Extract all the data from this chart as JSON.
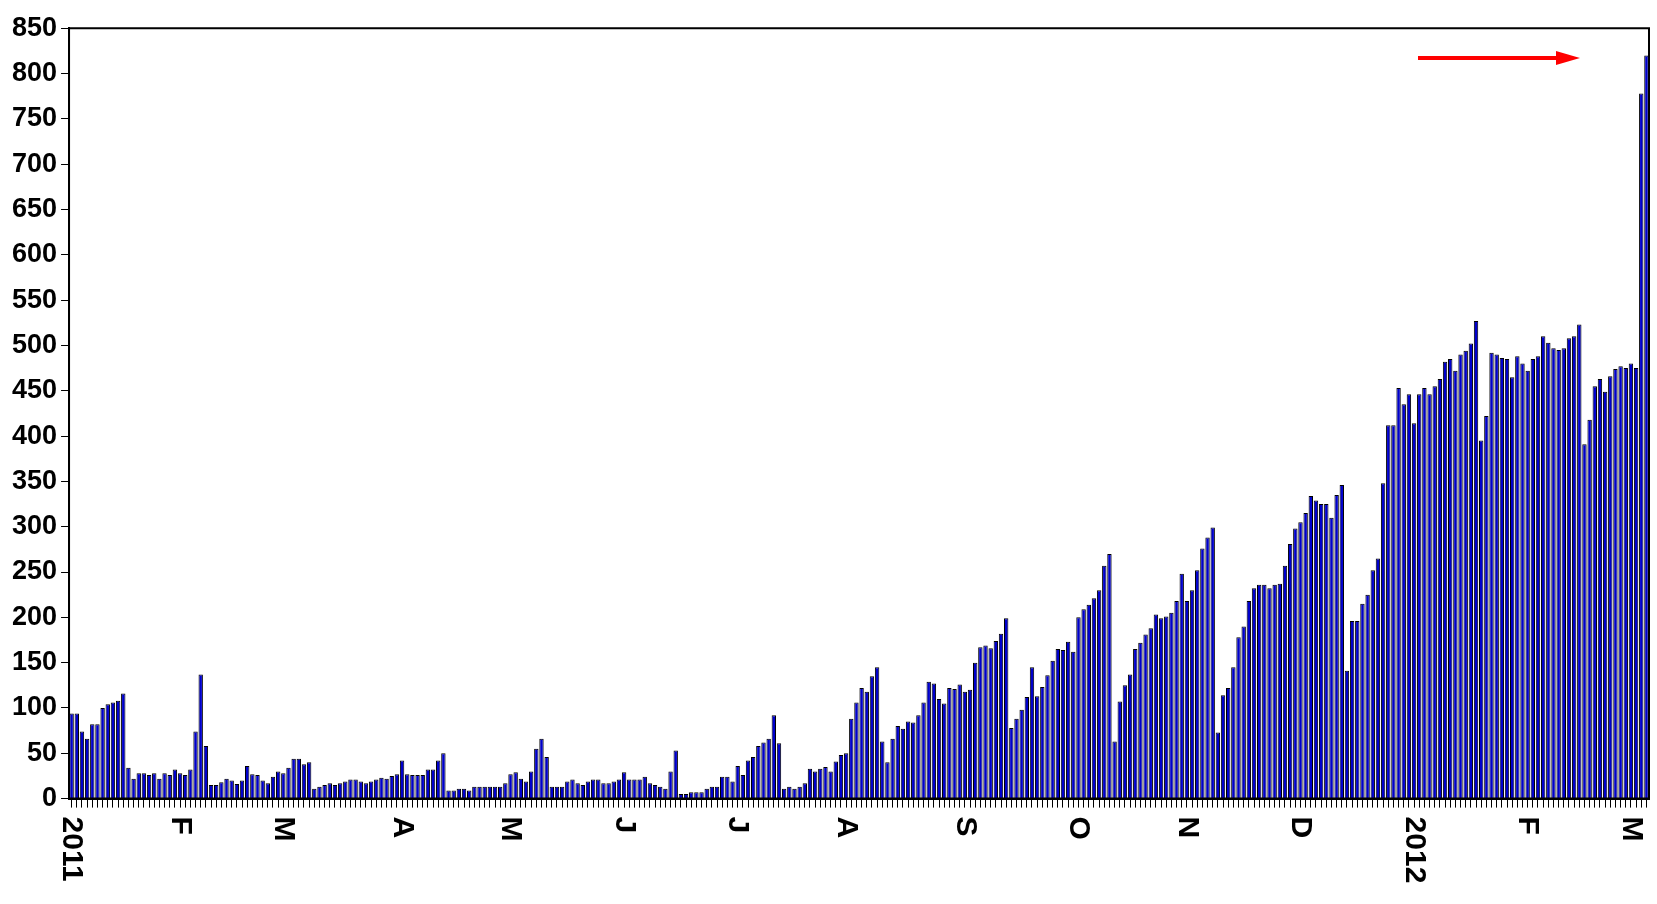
{
  "chart_data": {
    "type": "bar",
    "categories": [
      "2011",
      null,
      null,
      null,
      null,
      null,
      null,
      null,
      null,
      null,
      null,
      null,
      null,
      null,
      null,
      null,
      null,
      null,
      null,
      null,
      null,
      "F",
      null,
      null,
      null,
      null,
      null,
      null,
      null,
      null,
      null,
      null,
      null,
      null,
      null,
      null,
      null,
      null,
      null,
      null,
      null,
      "M",
      null,
      null,
      null,
      null,
      null,
      null,
      null,
      null,
      null,
      null,
      null,
      null,
      null,
      null,
      null,
      null,
      null,
      null,
      null,
      null,
      null,
      null,
      "A",
      null,
      null,
      null,
      null,
      null,
      null,
      null,
      null,
      null,
      null,
      null,
      null,
      null,
      null,
      null,
      null,
      null,
      null,
      null,
      null,
      "M",
      null,
      null,
      null,
      null,
      null,
      null,
      null,
      null,
      null,
      null,
      null,
      null,
      null,
      null,
      null,
      null,
      null,
      null,
      null,
      null,
      null,
      "J",
      null,
      null,
      null,
      null,
      null,
      null,
      null,
      null,
      null,
      null,
      null,
      null,
      null,
      null,
      null,
      null,
      null,
      null,
      null,
      null,
      null,
      "J",
      null,
      null,
      null,
      null,
      null,
      null,
      null,
      null,
      null,
      null,
      null,
      null,
      null,
      null,
      null,
      null,
      null,
      null,
      null,
      null,
      "A",
      null,
      null,
      null,
      null,
      null,
      null,
      null,
      null,
      null,
      null,
      null,
      null,
      null,
      null,
      null,
      null,
      null,
      null,
      null,
      null,
      null,
      null,
      "S",
      null,
      null,
      null,
      null,
      null,
      null,
      null,
      null,
      null,
      null,
      null,
      null,
      null,
      null,
      null,
      null,
      null,
      null,
      null,
      null,
      null,
      "O",
      null,
      null,
      null,
      null,
      null,
      null,
      null,
      null,
      null,
      null,
      null,
      null,
      null,
      null,
      null,
      null,
      null,
      null,
      null,
      null,
      "N",
      null,
      null,
      null,
      null,
      null,
      null,
      null,
      null,
      null,
      null,
      null,
      null,
      null,
      null,
      null,
      null,
      null,
      null,
      null,
      null,
      null,
      "D",
      null,
      null,
      null,
      null,
      null,
      null,
      null,
      null,
      null,
      null,
      null,
      null,
      null,
      null,
      null,
      null,
      null,
      null,
      null,
      null,
      null,
      "2012",
      null,
      null,
      null,
      null,
      null,
      null,
      null,
      null,
      null,
      null,
      null,
      null,
      null,
      null,
      null,
      null,
      null,
      null,
      null,
      null,
      null,
      "F",
      null,
      null,
      null,
      null,
      null,
      null,
      null,
      null,
      null,
      null,
      null,
      null,
      null,
      null,
      null,
      null,
      null,
      null,
      null,
      "M",
      null,
      null,
      null
    ],
    "values": [
      94,
      94,
      74,
      66,
      82,
      82,
      100,
      104,
      106,
      108,
      116,
      34,
      22,
      28,
      28,
      26,
      28,
      22,
      28,
      26,
      32,
      28,
      26,
      32,
      74,
      137,
      58,
      15,
      15,
      18,
      22,
      20,
      16,
      20,
      36,
      27,
      26,
      20,
      17,
      24,
      30,
      28,
      34,
      44,
      44,
      38,
      40,
      11,
      13,
      15,
      17,
      15,
      17,
      19,
      21,
      21,
      19,
      17,
      19,
      21,
      23,
      22,
      25,
      27,
      42,
      27,
      26,
      26,
      26,
      32,
      32,
      42,
      50,
      9,
      9,
      11,
      11,
      9,
      13,
      13,
      13,
      13,
      13,
      13,
      17,
      27,
      29,
      22,
      19,
      30,
      55,
      66,
      46,
      13,
      13,
      13,
      19,
      21,
      17,
      15,
      19,
      21,
      21,
      17,
      17,
      19,
      21,
      29,
      21,
      21,
      21,
      24,
      17,
      15,
      13,
      11,
      30,
      53,
      5,
      5,
      7,
      7,
      7,
      11,
      13,
      13,
      24,
      24,
      19,
      36,
      26,
      42,
      46,
      58,
      62,
      66,
      92,
      61,
      11,
      13,
      11,
      13,
      17,
      33,
      30,
      33,
      35,
      30,
      41,
      48,
      50,
      88,
      106,
      122,
      118,
      135,
      145,
      63,
      40,
      66,
      80,
      77,
      85,
      84,
      92,
      106,
      129,
      127,
      110,
      105,
      122,
      121,
      126,
      118,
      120,
      150,
      167,
      169,
      166,
      174,
      182,
      199,
      78,
      88,
      98,
      112,
      145,
      113,
      123,
      136,
      152,
      165,
      164,
      173,
      162,
      200,
      209,
      214,
      221,
      230,
      257,
      270,
      63,
      107,
      125,
      137,
      165,
      172,
      181,
      188,
      203,
      199,
      201,
      205,
      218,
      248,
      218,
      230,
      252,
      276,
      288,
      299,
      73,
      114,
      122,
      145,
      178,
      190,
      218,
      232,
      236,
      236,
      232,
      236,
      237,
      257,
      281,
      298,
      305,
      315,
      334,
      329,
      325,
      325,
      310,
      335,
      346,
      141,
      196,
      196,
      215,
      225,
      252,
      265,
      348,
      412,
      412,
      453,
      435,
      446,
      414,
      446,
      453,
      446,
      455,
      463,
      482,
      485,
      472,
      490,
      494,
      502,
      527,
      395,
      422,
      492,
      490,
      486,
      485,
      465,
      488,
      480,
      472,
      485,
      488,
      510,
      503,
      497,
      495,
      497,
      508,
      510,
      523,
      391,
      418,
      455,
      463,
      449,
      466,
      474,
      477,
      475,
      480,
      475,
      778,
      820
    ],
    "color": "#0000cc",
    "ylim": [
      0,
      850
    ],
    "yticks": [
      0,
      50,
      100,
      150,
      200,
      250,
      300,
      350,
      400,
      450,
      500,
      550,
      600,
      650,
      700,
      750,
      800,
      850
    ],
    "grid": false,
    "legend": false
  }
}
